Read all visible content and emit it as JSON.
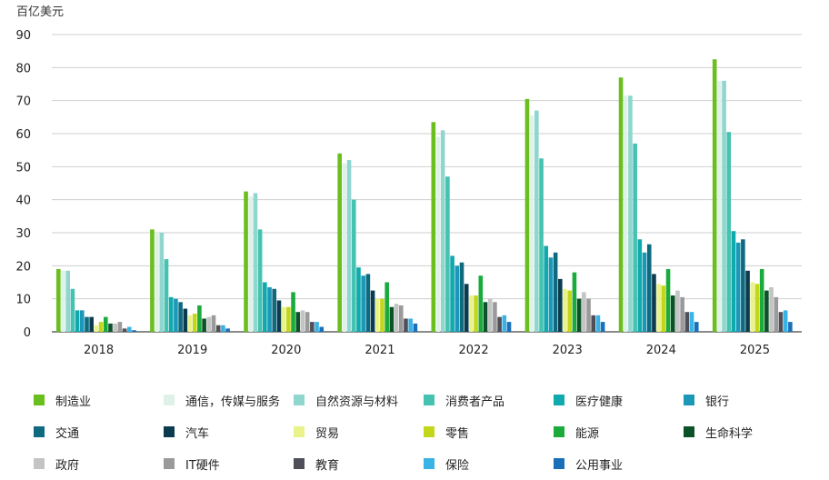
{
  "chart_data": {
    "type": "bar",
    "ylabel": "百亿美元",
    "ylim": [
      0,
      90
    ],
    "yticks": [
      0,
      10,
      20,
      30,
      40,
      50,
      60,
      70,
      80,
      90
    ],
    "grid": true,
    "legend_position": "bottom",
    "categories": [
      "2018",
      "2019",
      "2020",
      "2021",
      "2022",
      "2023",
      "2024",
      "2025"
    ],
    "series": [
      {
        "name": "制造业",
        "color": "#6abf1e",
        "values": [
          19,
          31,
          42.5,
          54,
          63.5,
          70.5,
          77,
          82.5
        ]
      },
      {
        "name": "通信，传媒与服务",
        "color": "#dff2e9",
        "values": [
          18.5,
          30,
          41,
          51,
          59,
          65.5,
          71.5,
          76
        ]
      },
      {
        "name": "自然资源与材料",
        "color": "#8fd6cf",
        "values": [
          18.5,
          30,
          42,
          52,
          61,
          67,
          71.5,
          76
        ]
      },
      {
        "name": "消费者产品",
        "color": "#45c2b1",
        "values": [
          13,
          22,
          31,
          40,
          47,
          52.5,
          57,
          60.5
        ]
      },
      {
        "name": "医疗健康",
        "color": "#10a9ad",
        "values": [
          6.5,
          10.5,
          15,
          19.5,
          23,
          26,
          28,
          30.5
        ]
      },
      {
        "name": "银行",
        "color": "#1b98b7",
        "values": [
          6.5,
          10,
          13.5,
          17,
          20,
          22.5,
          24,
          27
        ]
      },
      {
        "name": "交通",
        "color": "#0f6a80",
        "values": [
          4.5,
          9,
          13,
          17.5,
          21,
          24,
          26.5,
          28
        ]
      },
      {
        "name": "汽车",
        "color": "#0c3b4f",
        "values": [
          4.5,
          7,
          9.5,
          12.5,
          14.5,
          16,
          17.5,
          18.5
        ]
      },
      {
        "name": "贸易",
        "color": "#eaf28a",
        "values": [
          2,
          5,
          7.5,
          10,
          11,
          13,
          14.5,
          15
        ]
      },
      {
        "name": "零售",
        "color": "#c2d61a",
        "values": [
          3,
          5.5,
          7.5,
          10,
          11,
          12.5,
          14,
          14.5
        ]
      },
      {
        "name": "能源",
        "color": "#1aab3c",
        "values": [
          4.5,
          8,
          12,
          15,
          17,
          18,
          19,
          19
        ]
      },
      {
        "name": "生命科学",
        "color": "#0c5228",
        "values": [
          2.5,
          4,
          6,
          7.5,
          9,
          10,
          11,
          12.5
        ]
      },
      {
        "name": "政府",
        "color": "#c4c4c4",
        "values": [
          2.5,
          4.5,
          6.5,
          8.5,
          10,
          12,
          12.5,
          13.5
        ]
      },
      {
        "name": "IT硬件",
        "color": "#9a9a9a",
        "values": [
          3,
          5,
          6,
          8,
          9,
          10,
          10.5,
          10.5
        ]
      },
      {
        "name": "教育",
        "color": "#4f4f5a",
        "values": [
          1,
          2,
          3,
          4,
          4.5,
          5,
          6,
          6
        ]
      },
      {
        "name": "保险",
        "color": "#39b2e6",
        "values": [
          1.5,
          2,
          3,
          4,
          5,
          5,
          6,
          6.5
        ]
      },
      {
        "name": "公用事业",
        "color": "#1a70b8",
        "values": [
          0.5,
          1,
          1.5,
          2.5,
          3,
          3,
          3,
          3
        ]
      }
    ]
  }
}
